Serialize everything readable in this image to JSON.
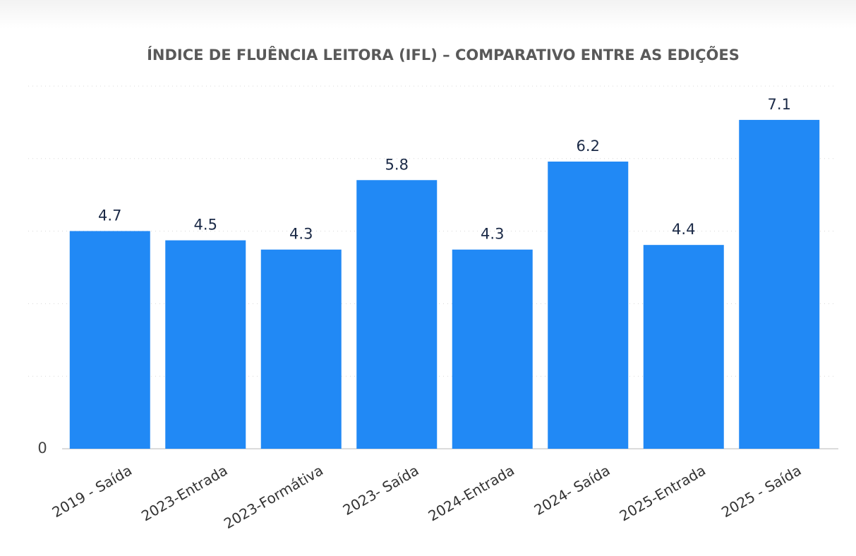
{
  "chart_data": {
    "type": "bar",
    "title": "ÍNDICE DE FLUÊNCIA LEITORA (IFL) – COMPARATIVO ENTRE AS EDIÇÕES",
    "categories": [
      "2019 - Saída",
      "2023-Entrada",
      "2023-Formátiva",
      "2023- Saída",
      "2024-Entrada",
      "2024- Saída",
      "2025-Entrada",
      "2025 - Saída"
    ],
    "values": [
      4.7,
      4.5,
      4.3,
      5.8,
      4.3,
      6.2,
      4.4,
      7.1
    ],
    "color": "#2189f5",
    "ylim": [
      0,
      7.83
    ],
    "yticks": [
      0
    ],
    "grid": true
  }
}
